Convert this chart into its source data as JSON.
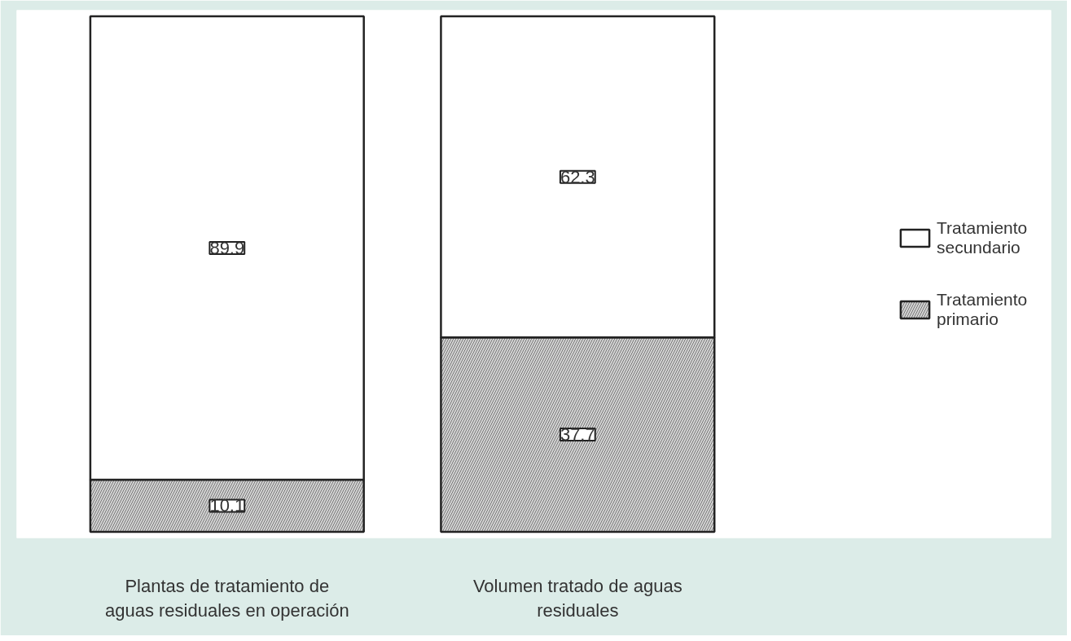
{
  "chart_data": {
    "type": "bar",
    "stacked": true,
    "data_labels": true,
    "legend": "right",
    "grid": false,
    "categories": [
      "Plantas de tratamiento de aguas residuales en operación",
      "Volumen tratado de aguas residuales"
    ],
    "series": [
      {
        "name": "Tratamiento primario",
        "color": "#d4d4d4",
        "values": [
          10.1,
          37.7
        ]
      },
      {
        "name": "Tratamiento secundario",
        "color": "#ffffff",
        "values": [
          89.9,
          62.3
        ]
      }
    ]
  }
}
